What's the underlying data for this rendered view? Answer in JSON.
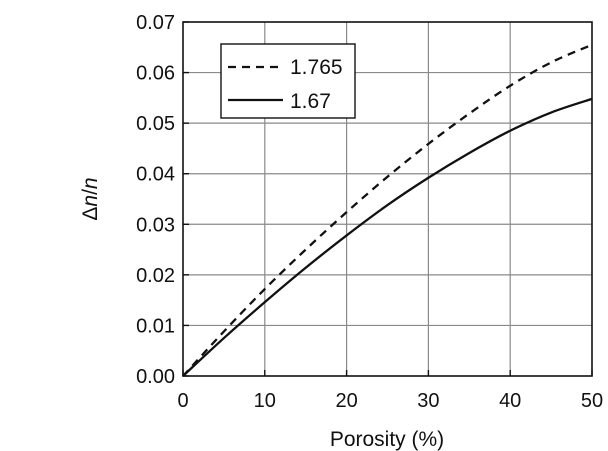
{
  "chart_data": {
    "type": "line",
    "xlabel": "Porosity (%)",
    "ylabel_symbol": "Δ",
    "ylabel_n1": "n",
    "ylabel_sep": "/",
    "ylabel_n2": "n",
    "xlim": [
      0,
      50
    ],
    "ylim": [
      0,
      0.07
    ],
    "x_ticks": [
      "0",
      "10",
      "20",
      "30",
      "40",
      "50"
    ],
    "y_ticks": [
      "0.00",
      "0.01",
      "0.02",
      "0.03",
      "0.04",
      "0.05",
      "0.06",
      "0.07"
    ],
    "grid": true,
    "legend_position": "top-left",
    "series": [
      {
        "name": "1.765",
        "style": "dashed",
        "color": "#111111",
        "x": [
          0,
          5,
          10,
          15,
          20,
          25,
          30,
          35,
          40,
          45,
          50
        ],
        "y": [
          0,
          0.0088,
          0.0172,
          0.025,
          0.0324,
          0.0394,
          0.0459,
          0.0519,
          0.0574,
          0.062,
          0.0655
        ]
      },
      {
        "name": "1.67",
        "style": "solid",
        "color": "#111111",
        "x": [
          0,
          5,
          10,
          15,
          20,
          25,
          30,
          35,
          40,
          45,
          50
        ],
        "y": [
          0,
          0.0075,
          0.0146,
          0.0214,
          0.0278,
          0.0338,
          0.0392,
          0.0441,
          0.0485,
          0.0521,
          0.0548
        ]
      }
    ]
  }
}
